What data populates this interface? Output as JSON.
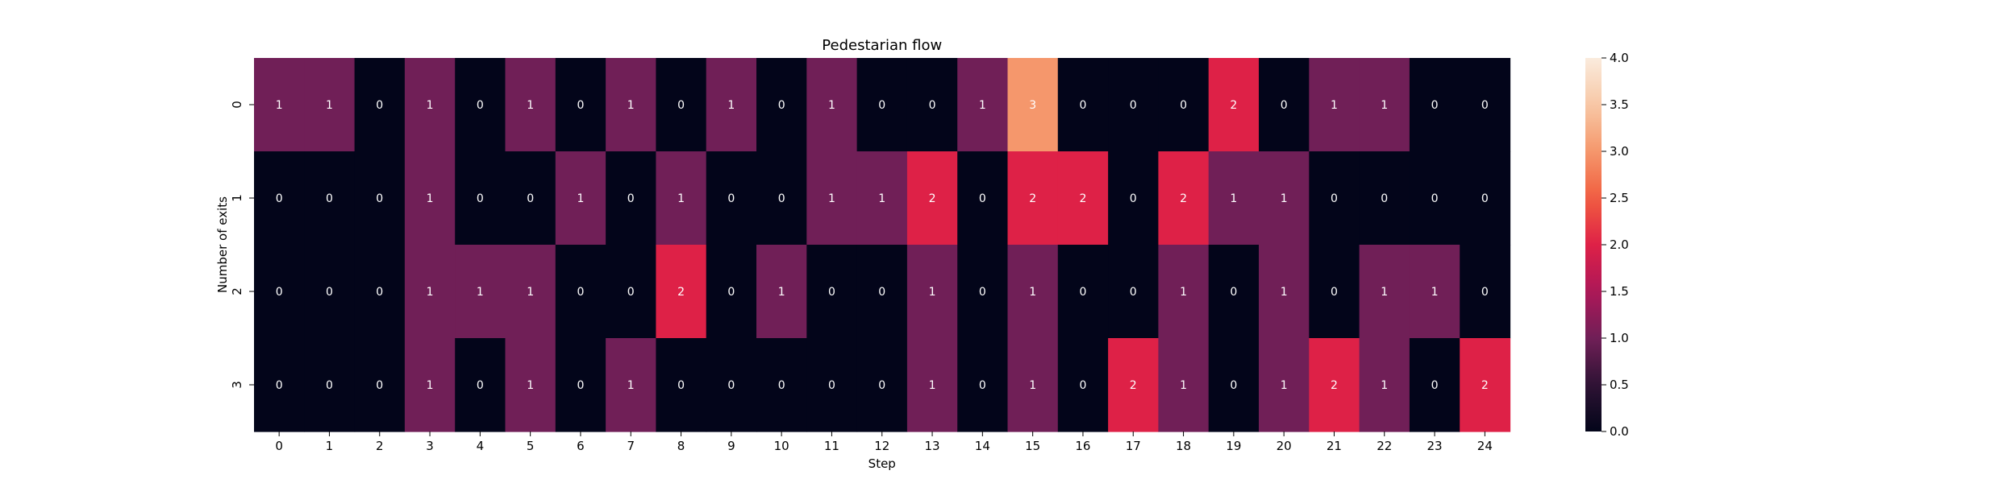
{
  "chart_data": {
    "type": "heatmap",
    "title": "Pedestarian flow",
    "xlabel": "Step",
    "ylabel": "Number of exits",
    "x": [
      "0",
      "1",
      "2",
      "3",
      "4",
      "5",
      "6",
      "7",
      "8",
      "9",
      "10",
      "11",
      "12",
      "13",
      "14",
      "15",
      "16",
      "17",
      "18",
      "19",
      "20",
      "21",
      "22",
      "23",
      "24"
    ],
    "y": [
      "0",
      "1",
      "2",
      "3"
    ],
    "values": [
      [
        1,
        1,
        0,
        1,
        0,
        1,
        0,
        1,
        0,
        1,
        0,
        1,
        0,
        0,
        1,
        3,
        0,
        0,
        0,
        2,
        0,
        1,
        1,
        0,
        0
      ],
      [
        0,
        0,
        0,
        1,
        0,
        0,
        1,
        0,
        1,
        0,
        0,
        1,
        1,
        2,
        0,
        2,
        2,
        0,
        2,
        1,
        1,
        0,
        0,
        0,
        0
      ],
      [
        0,
        0,
        0,
        1,
        1,
        1,
        0,
        0,
        2,
        0,
        1,
        0,
        0,
        1,
        0,
        1,
        0,
        0,
        1,
        0,
        1,
        0,
        1,
        1,
        0
      ],
      [
        0,
        0,
        0,
        1,
        0,
        1,
        0,
        1,
        0,
        0,
        0,
        0,
        0,
        1,
        0,
        1,
        0,
        2,
        1,
        0,
        1,
        2,
        1,
        0,
        2
      ]
    ],
    "colorbar": {
      "vmin": 0,
      "vmax": 4,
      "ticks": [
        "0.0",
        "0.5",
        "1.0",
        "1.5",
        "2.0",
        "2.5",
        "3.0",
        "3.5",
        "4.0"
      ]
    },
    "colormap": "rocket",
    "annotations": true
  }
}
